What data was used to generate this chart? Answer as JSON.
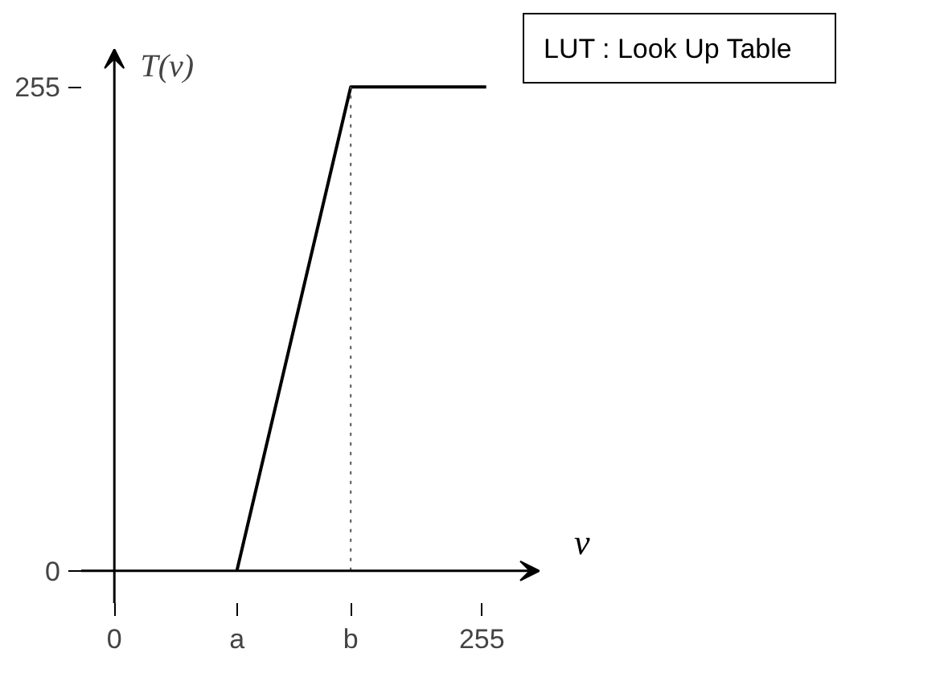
{
  "chart_data": {
    "type": "line",
    "xlabel": "v",
    "ylabel": "T(v)",
    "annotations": [
      "LUT : Look Up Table"
    ],
    "x": [
      85,
      164,
      258
    ],
    "series": [
      {
        "color": "#000000",
        "values": [
          0,
          255,
          255
        ]
      }
    ],
    "xlim": [
      -23,
      295
    ],
    "ylim": [
      -17,
      275
    ],
    "xticks": [
      0,
      {
        "value": 85,
        "label": "a"
      },
      {
        "value": 164,
        "label": "b"
      },
      255
    ],
    "yticks": [
      0,
      255
    ],
    "ref_lines": [
      {
        "axis": "x",
        "value": 164,
        "line_style": "dotted"
      }
    ],
    "grid": false,
    "marker": "none",
    "line_style": "solid"
  }
}
